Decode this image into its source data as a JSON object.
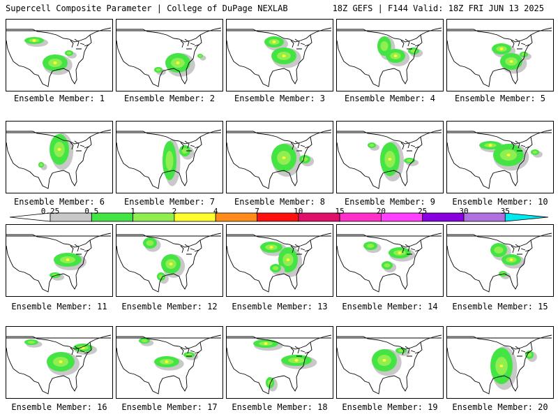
{
  "header": {
    "left_title": "Supercell Composite Parameter | College of DuPage NEXLAB",
    "right_title": "18Z GEFS | F144 Valid: 18Z FRI JUN 13 2025"
  },
  "colorbar": {
    "labels": [
      "0.25",
      "0.5",
      "1",
      "2",
      "4",
      "7",
      "10",
      "15",
      "20",
      "25",
      "30",
      "35"
    ],
    "colors": [
      "#c8c8c8",
      "#44e444",
      "#90ee50",
      "#ffff30",
      "#ff8c1a",
      "#ff1010",
      "#e0106a",
      "#ff30c8",
      "#ff40ff",
      "#8800e0",
      "#b070e0",
      "#00e8f0"
    ]
  },
  "members": [
    {
      "label": "Ensemble Member: 1"
    },
    {
      "label": "Ensemble Member: 2"
    },
    {
      "label": "Ensemble Member: 3"
    },
    {
      "label": "Ensemble Member: 4"
    },
    {
      "label": "Ensemble Member: 5"
    },
    {
      "label": "Ensemble Member: 6"
    },
    {
      "label": "Ensemble Member: 7"
    },
    {
      "label": "Ensemble Member: 8"
    },
    {
      "label": "Ensemble Member: 9"
    },
    {
      "label": "Ensemble Member: 10"
    },
    {
      "label": "Ensemble Member: 11"
    },
    {
      "label": "Ensemble Member: 12"
    },
    {
      "label": "Ensemble Member: 13"
    },
    {
      "label": "Ensemble Member: 14"
    },
    {
      "label": "Ensemble Member: 15"
    },
    {
      "label": "Ensemble Member: 16"
    },
    {
      "label": "Ensemble Member: 17"
    },
    {
      "label": "Ensemble Member: 18"
    },
    {
      "label": "Ensemble Member: 19"
    },
    {
      "label": "Ensemble Member: 20"
    }
  ]
}
